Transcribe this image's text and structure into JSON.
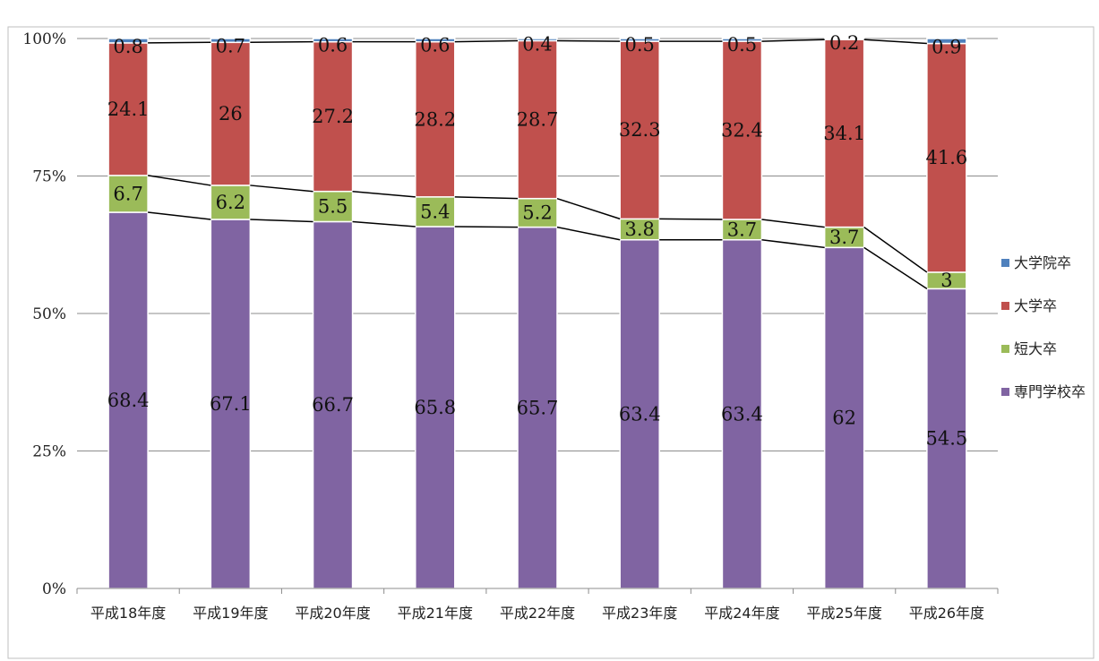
{
  "chart_data": {
    "type": "bar",
    "stacked": "percent",
    "title": "",
    "xlabel": "",
    "ylabel": "",
    "ylim": [
      0,
      100
    ],
    "y_ticks": [
      "0%",
      "25%",
      "50%",
      "75%",
      "100%"
    ],
    "grid": true,
    "legend_position": "right",
    "categories": [
      "平成18年度",
      "平成19年度",
      "平成20年度",
      "平成21年度",
      "平成22年度",
      "平成23年度",
      "平成24年度",
      "平成25年度",
      "平成26年度"
    ],
    "series": [
      {
        "name": "専門学校卒",
        "color": "#8064a2",
        "values": [
          68.4,
          67.1,
          66.7,
          65.8,
          65.7,
          63.4,
          63.4,
          62,
          54.5
        ]
      },
      {
        "name": "短大卒",
        "color": "#9bbb59",
        "values": [
          6.7,
          6.2,
          5.5,
          5.4,
          5.2,
          3.8,
          3.7,
          3.7,
          3
        ]
      },
      {
        "name": "大学卒",
        "color": "#c0504d",
        "values": [
          24.1,
          26,
          27.2,
          28.2,
          28.7,
          32.3,
          32.4,
          34.1,
          41.6
        ]
      },
      {
        "name": "大学院卒",
        "color": "#4f81bd",
        "values": [
          0.8,
          0.7,
          0.6,
          0.6,
          0.4,
          0.5,
          0.5,
          0.2,
          0.9
        ]
      }
    ],
    "legend_order": [
      "大学院卒",
      "大学卒",
      "短大卒",
      "専門学校卒"
    ]
  }
}
